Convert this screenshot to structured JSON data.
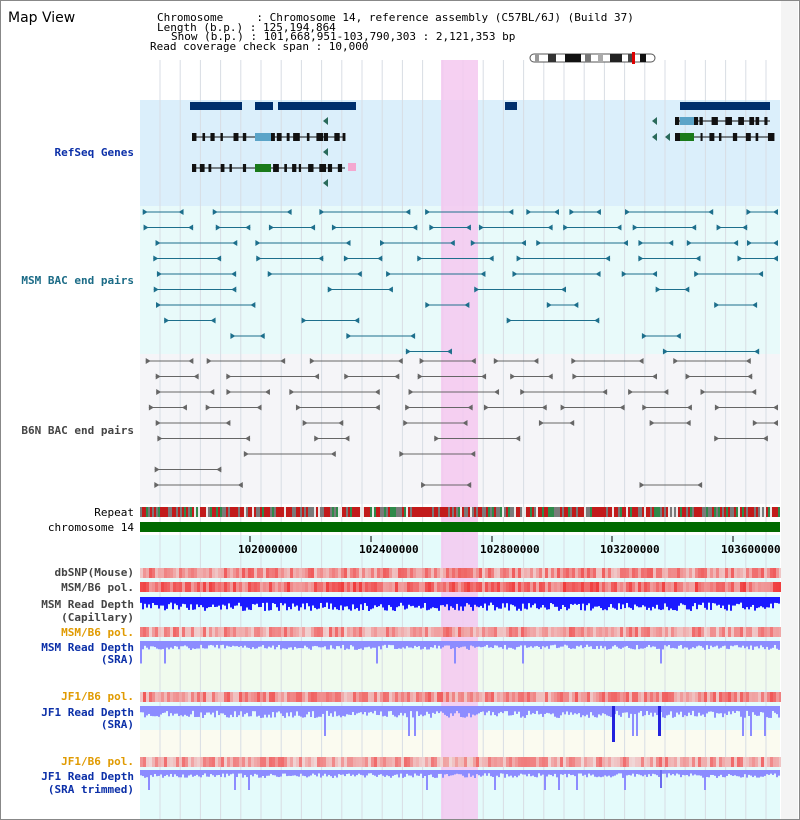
{
  "header": {
    "title": "Map View",
    "info_lines": [
      "Chromosome     : Chromosome 14, reference assembly (C57BL/6J) (Build 37)",
      "Length (b.p.) : 125,194,864",
      "Show (b.p.) : 101,668,951-103,790,303 : 2,121,353 bp",
      "Read coverage check span : 10,000"
    ]
  },
  "tracks": {
    "refseq": "RefSeq Genes",
    "msm_bac": "MSM BAC end pairs",
    "b6n_bac": "B6N BAC end pairs",
    "repeat": "Repeat",
    "chromosome": "chromosome 14",
    "dbsnp": "dbSNP(Mouse)",
    "msm_b6_pol_1": "MSM/B6 pol.",
    "msm_read_depth_cap_1": "MSM Read Depth",
    "msm_read_depth_cap_2": "(Capillary)",
    "msm_b6_pol_2": "MSM/B6 pol.",
    "msm_read_depth_sra_1": "MSM Read Depth",
    "msm_read_depth_sra_2": "(SRA)",
    "jf1_b6_pol_1": "JF1/B6 pol.",
    "jf1_read_depth_sra_1": "JF1 Read Depth",
    "jf1_read_depth_sra_2": "(SRA)",
    "jf1_b6_pol_2": "JF1/B6 pol.",
    "jf1_read_depth_trim_1": "JF1 Read Depth",
    "jf1_read_depth_trim_2": "(SRA trimmed)"
  },
  "axis": {
    "ticks": [
      "102000000",
      "102400000",
      "102800000",
      "103200000",
      "103600000"
    ]
  },
  "colors": {
    "refseq_bg": "#dbeffb",
    "msm_bg": "#e8fafa",
    "b6n_bg": "#f5f5f8",
    "highlight": "#f5c8f0",
    "chromosome": "#006a00",
    "gene_dark": "#002f6c",
    "msm_line": "#1d6f8c",
    "b6n_line": "#666666",
    "depth_blue": "#1a1aff",
    "depth_light": "#8c8cff"
  }
}
